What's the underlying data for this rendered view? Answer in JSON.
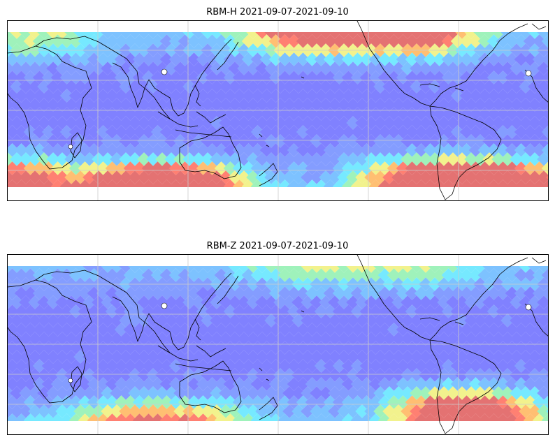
{
  "panels": [
    {
      "id": "rbm-h",
      "title": "RBM-H 2021-09-07-2021-09-10",
      "hot_zones": [
        {
          "lon": 0.78,
          "lat": -0.92,
          "strength": 1.0
        },
        {
          "lon": 0.92,
          "lat": -0.95,
          "strength": 1.0
        },
        {
          "lon": 0.0,
          "lat": -0.9,
          "strength": 0.85
        },
        {
          "lon": 0.25,
          "lat": -1.0,
          "strength": 0.9
        },
        {
          "lon": 0.32,
          "lat": -1.0,
          "strength": 0.9
        },
        {
          "lon": 0.55,
          "lat": 0.98,
          "strength": 0.8
        },
        {
          "lon": 0.75,
          "lat": 0.98,
          "strength": 0.85
        },
        {
          "lon": 0.05,
          "lat": 0.9,
          "strength": 0.35
        }
      ]
    },
    {
      "id": "rbm-z",
      "title": "RBM-Z 2021-09-07-2021-09-10",
      "hot_zones": [
        {
          "lon": 0.83,
          "lat": -0.85,
          "strength": 0.8
        },
        {
          "lon": 0.88,
          "lat": -1.0,
          "strength": 0.5
        },
        {
          "lon": 0.22,
          "lat": -1.0,
          "strength": 0.45
        },
        {
          "lon": 0.35,
          "lat": -1.0,
          "strength": 0.4
        },
        {
          "lon": 0.55,
          "lat": 1.0,
          "strength": 0.3
        },
        {
          "lon": 0.75,
          "lat": 1.0,
          "strength": 0.3
        }
      ]
    }
  ],
  "colormap": [
    "#6a6cff",
    "#6f8cff",
    "#67b8ff",
    "#5fe6ff",
    "#8ff0b0",
    "#f0f07a",
    "#ffb45a",
    "#ff6a5a",
    "#e05a5a"
  ],
  "map_style": {
    "coastline_color": "#000000",
    "gridline_color": "#cccccc",
    "ocean_color": "#ffffff",
    "field_opacity": 0.85
  }
}
